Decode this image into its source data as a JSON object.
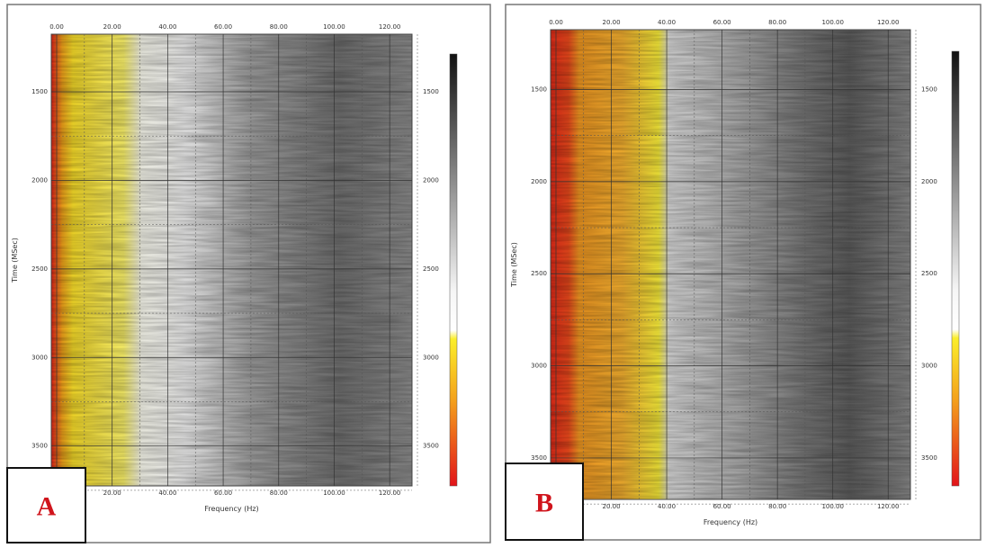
{
  "panels": [
    {
      "label": "A",
      "x_label": "Frequency (Hz)",
      "y_label": "Time (MSec)",
      "x_ticks": [
        "0.00",
        "20.00",
        "40.00",
        "60.00",
        "80.00",
        "100.00",
        "120.00"
      ],
      "y_ticks": [
        "1500",
        "2000",
        "2500",
        "3000",
        "3500"
      ]
    },
    {
      "label": "B",
      "x_label": "Frequency (Hz)",
      "y_label": "Time (MSec)",
      "x_ticks": [
        "0.00",
        "20.00",
        "40.00",
        "60.00",
        "80.00",
        "100.00",
        "120.00"
      ],
      "y_ticks": [
        "1500",
        "2000",
        "2500",
        "3000",
        "3500"
      ]
    }
  ]
}
